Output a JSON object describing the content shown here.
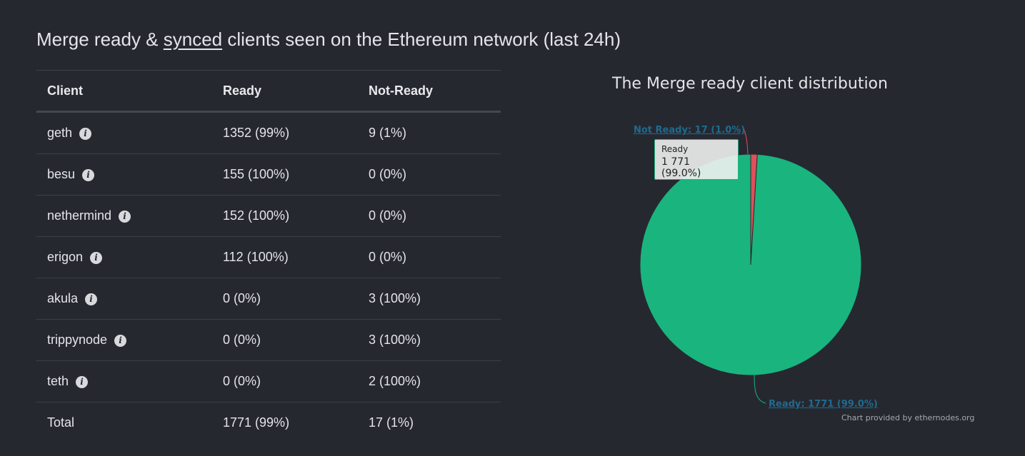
{
  "heading": {
    "prefix": "Merge ready & ",
    "link": "synced",
    "suffix": " clients seen on the Ethereum network (last 24h)"
  },
  "table": {
    "headers": [
      "Client",
      "Ready",
      "Not-Ready"
    ],
    "rows": [
      {
        "client": "geth",
        "ready": "1352 (99%)",
        "not_ready": "9 (1%)"
      },
      {
        "client": "besu",
        "ready": "155 (100%)",
        "not_ready": "0 (0%)"
      },
      {
        "client": "nethermind",
        "ready": "152 (100%)",
        "not_ready": "0 (0%)"
      },
      {
        "client": "erigon",
        "ready": "112 (100%)",
        "not_ready": "0 (0%)"
      },
      {
        "client": "akula",
        "ready": "0 (0%)",
        "not_ready": "3 (100%)"
      },
      {
        "client": "trippynode",
        "ready": "0 (0%)",
        "not_ready": "3 (100%)"
      },
      {
        "client": "teth",
        "ready": "0 (0%)",
        "not_ready": "2 (100%)"
      }
    ],
    "total": {
      "client": "Total",
      "ready": "1771 (99%)",
      "not_ready": "17 (1%)"
    },
    "info_icon": "info-icon"
  },
  "chart_data": {
    "type": "pie",
    "title": "The Merge ready client distribution",
    "slices": [
      {
        "name": "Not Ready",
        "value": 17,
        "percent": 1.0,
        "label": "Not Ready: 17 (1.0%)",
        "color": "#e0505a"
      },
      {
        "name": "Ready",
        "value": 1771,
        "percent": 99.0,
        "label": "Ready: 1771 (99.0%)",
        "color": "#1ab47f"
      }
    ],
    "tooltip": {
      "series": "Ready",
      "value": "1 771 (99.0%)"
    },
    "credits": "Chart provided by ethernodes.org"
  }
}
